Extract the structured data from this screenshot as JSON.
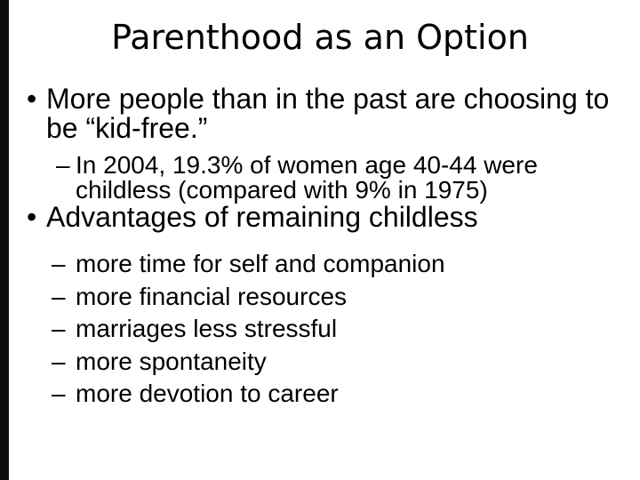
{
  "slide": {
    "title": "Parenthood as an Option",
    "bullet_glyph": "•",
    "dash_glyph": "–",
    "bullets": [
      {
        "label": "More people than in the past are choosing to be “kid-free.”",
        "children": [
          "In 2004, 19.3% of women age 40-44 were childless (compared with 9% in 1975)"
        ]
      },
      {
        "label": "Advantages of remaining childless",
        "children": [
          "more time for self and companion",
          "more financial resources",
          "marriages less stressful",
          "more spontaneity",
          "more devotion to career"
        ]
      }
    ],
    "colors": {
      "background": "#ffffff",
      "text": "#000000",
      "edge_bar": "#0a0a0a"
    }
  }
}
